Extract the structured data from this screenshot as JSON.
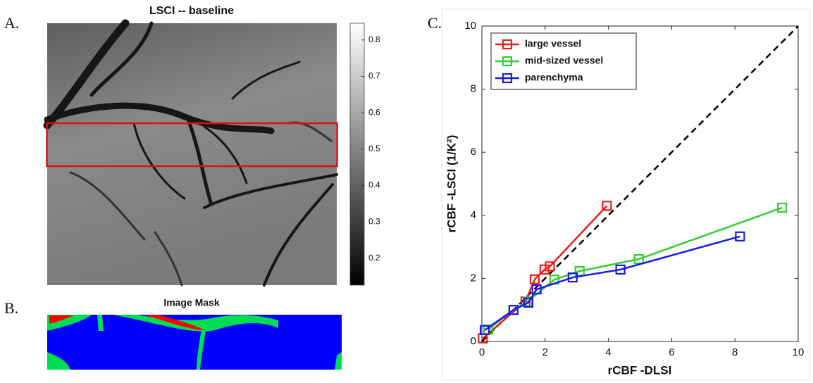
{
  "chart_data": [
    {
      "type": "image",
      "panel_label": "A.",
      "title": "LSCI -- baseline",
      "colorbar": {
        "clim": [
          0.126,
          0.846
        ],
        "ticks": [
          0.2,
          0.3,
          0.4,
          0.5,
          0.6,
          0.7,
          0.8
        ]
      }
    },
    {
      "type": "image",
      "panel_label": "B.",
      "title": "Image Mask"
    },
    {
      "type": "line",
      "panel_label": "C.",
      "xlabel": "rCBF -DLSI",
      "ylabel": "rCBF -LSCI (1/K²)",
      "xlim": [
        0,
        10
      ],
      "ylim": [
        0,
        10
      ],
      "xticks": [
        0,
        2,
        4,
        6,
        8,
        10
      ],
      "yticks": [
        0,
        2,
        4,
        6,
        8,
        10
      ],
      "legend": "upper left",
      "series": [
        {
          "name": "large vessel",
          "color": "#ee1c1c",
          "x": [
            0.03,
            1.38,
            1.67,
            1.98,
            2.15,
            3.95
          ],
          "values": [
            0.1,
            1.27,
            1.97,
            2.28,
            2.38,
            4.3
          ]
        },
        {
          "name": "mid-sized vessel",
          "color": "#33cc33",
          "x": [
            0.2,
            1.0,
            1.45,
            2.29,
            3.09,
            4.96,
            9.49
          ],
          "values": [
            0.38,
            1.0,
            1.27,
            1.96,
            2.23,
            2.61,
            4.24
          ]
        },
        {
          "name": "parenchyma",
          "color": "#1a1aee",
          "x": [
            0.09,
            1.0,
            1.47,
            1.73,
            2.87,
            4.38,
            8.16
          ],
          "values": [
            0.36,
            1.0,
            1.23,
            1.65,
            2.03,
            2.28,
            3.33
          ]
        }
      ]
    }
  ]
}
